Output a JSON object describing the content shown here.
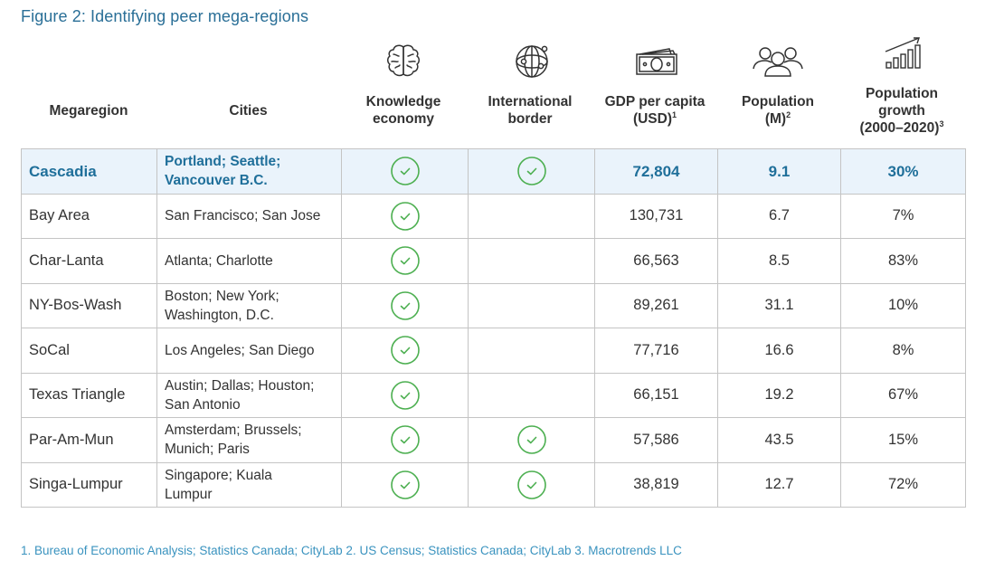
{
  "title": "Figure 2: Identifying peer mega-regions",
  "colors": {
    "title": "#2a6f97",
    "highlight_bg": "#eaf3fb",
    "highlight_text": "#1f6f9a",
    "check": "#4caf50",
    "border": "#c4c4c4",
    "footnote": "#3a93bf"
  },
  "header": {
    "columns": [
      {
        "label": "Megaregion",
        "icon": null
      },
      {
        "label": "Cities",
        "icon": null
      },
      {
        "label_line1": "Knowledge",
        "label_line2": "economy",
        "icon": "brain-icon"
      },
      {
        "label_line1": "International",
        "label_line2": "border",
        "icon": "globe-icon"
      },
      {
        "label_line1": "GDP per capita",
        "label_line2": "(USD)",
        "sup": "1",
        "icon": "money-bill-icon"
      },
      {
        "label_line1": "Population",
        "label_line2": "(M)",
        "sup": "2",
        "icon": "people-group-icon"
      },
      {
        "label_line1": "Population",
        "label_line2": "growth",
        "label_line3": "(2000–2020)",
        "sup": "3",
        "icon": "growth-chart-icon"
      }
    ]
  },
  "rows": [
    {
      "region": "Cascadia",
      "cities_line1": "Portland; Seattle;",
      "cities_line2": "Vancouver B.C.",
      "knowledge": true,
      "border": true,
      "gdp": "72,804",
      "population": "9.1",
      "growth": "30%",
      "highlight": true
    },
    {
      "region": "Bay Area",
      "cities_line1": "San Francisco; San Jose",
      "cities_line2": "",
      "knowledge": true,
      "border": false,
      "gdp": "130,731",
      "population": "6.7",
      "growth": "7%"
    },
    {
      "region": "Char-Lanta",
      "cities_line1": "Atlanta; Charlotte",
      "cities_line2": "",
      "knowledge": true,
      "border": false,
      "gdp": "66,563",
      "population": "8.5",
      "growth": "83%"
    },
    {
      "region": "NY-Bos-Wash",
      "cities_line1": "Boston; New York;",
      "cities_line2": "Washington, D.C.",
      "knowledge": true,
      "border": false,
      "gdp": "89,261",
      "population": "31.1",
      "growth": "10%"
    },
    {
      "region": "SoCal",
      "cities_line1": "Los Angeles; San Diego",
      "cities_line2": "",
      "knowledge": true,
      "border": false,
      "gdp": "77,716",
      "population": "16.6",
      "growth": "8%"
    },
    {
      "region": "Texas Triangle",
      "cities_line1": "Austin; Dallas; Houston;",
      "cities_line2": "San Antonio",
      "knowledge": true,
      "border": false,
      "gdp": "66,151",
      "population": "19.2",
      "growth": "67%"
    },
    {
      "region": "Par-Am-Mun",
      "cities_line1": "Amsterdam; Brussels;",
      "cities_line2": "Munich; Paris",
      "knowledge": true,
      "border": true,
      "gdp": "57,586",
      "population": "43.5",
      "growth": "15%"
    },
    {
      "region": "Singa-Lumpur",
      "cities_line1": "Singapore; Kuala",
      "cities_line2": "Lumpur",
      "knowledge": true,
      "border": true,
      "gdp": "38,819",
      "population": "12.7",
      "growth": "72%"
    }
  ],
  "footnote": "1. Bureau of Economic Analysis; Statistics Canada; CityLab 2. US Census; Statistics Canada; CityLab 3. Macrotrends LLC"
}
